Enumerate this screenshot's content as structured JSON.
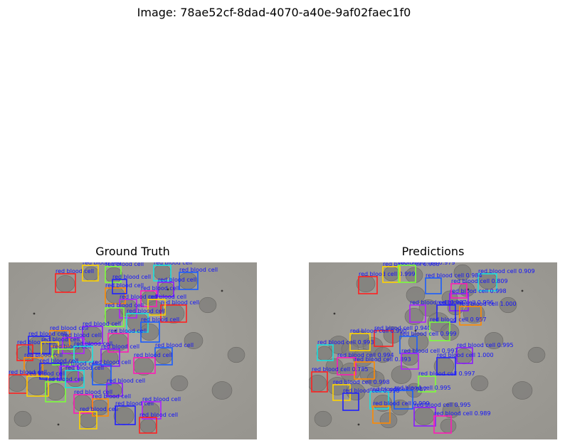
{
  "figure": {
    "title": "Image: 78ae52cf-8dad-4070-a40e-9af02faec1f0"
  },
  "panels": {
    "left": {
      "title": "Ground Truth"
    },
    "right": {
      "title": "Predictions"
    }
  },
  "image": {
    "description_icon": "blood-smear-image"
  },
  "colors": {
    "background": "#9d9b95",
    "cell": "#7e7c79",
    "label": "#1010ff",
    "boxes": [
      "#ff2020",
      "#ffd400",
      "#7cff3a",
      "#18e0e0",
      "#1a5cff",
      "#8a1aff",
      "#ff1ab8",
      "#ff8a00",
      "#2020ff",
      "#b020ff"
    ]
  },
  "ground_truth": {
    "labels": [
      "red blood cell",
      "red blood cell",
      "red blood cell",
      "red blood cell",
      "red blood cell",
      "red blood cell",
      "red blood cell",
      "red blood cell",
      "red blood cell",
      "red blood cell",
      "red blood cell",
      "red blood cell",
      "red blood cell",
      "red blood cell",
      "red blood cell",
      "red blood cell",
      "red blood cell",
      "red blood cell",
      "red blood cell",
      "red blood cell",
      "red blood cell",
      "red blood cell",
      "red blood cell",
      "red blood cell",
      "red blood cell",
      "red blood cell",
      "red blood cell",
      "red blood cell",
      "red blood cell",
      "red blood cell",
      "red blood cell",
      "red blood cell",
      "red blood cell",
      "red blood cell",
      "red blood cell",
      "red blood cell",
      "red blood cell",
      "red blood cell",
      "red blood cell",
      "red blood cell",
      "red blood cell",
      "red blood cell"
    ]
  },
  "predictions": {
    "labels": [
      "red blood cell 0.999",
      "red blood cell 0.988",
      "red blood cell 0.979",
      "red blood cell 0.909",
      "red blood cell 0.984",
      "red blood cell 0.998",
      "red blood cell 0.809",
      "red blood cell 1.000",
      "red blood cell 0.996",
      "red blood cell 0.997",
      "red blood cell 0.940",
      "red blood cell 0.990",
      "red blood cell 0.957",
      "red blood cell 0.993",
      "red blood cell 0.999",
      "red blood cell 0.995",
      "red blood cell 0.994",
      "red blood cell 0.893",
      "red blood cell 1.000",
      "red blood cell 0.997",
      "red blood cell 0.785",
      "red blood cell 0.998",
      "red blood cell 0.997",
      "red blood cell 0.987",
      "red blood cell 0.995",
      "red blood cell 0.995",
      "red blood cell 0.989",
      "red blood cell 0.999",
      "red blood cell 0.998"
    ]
  }
}
